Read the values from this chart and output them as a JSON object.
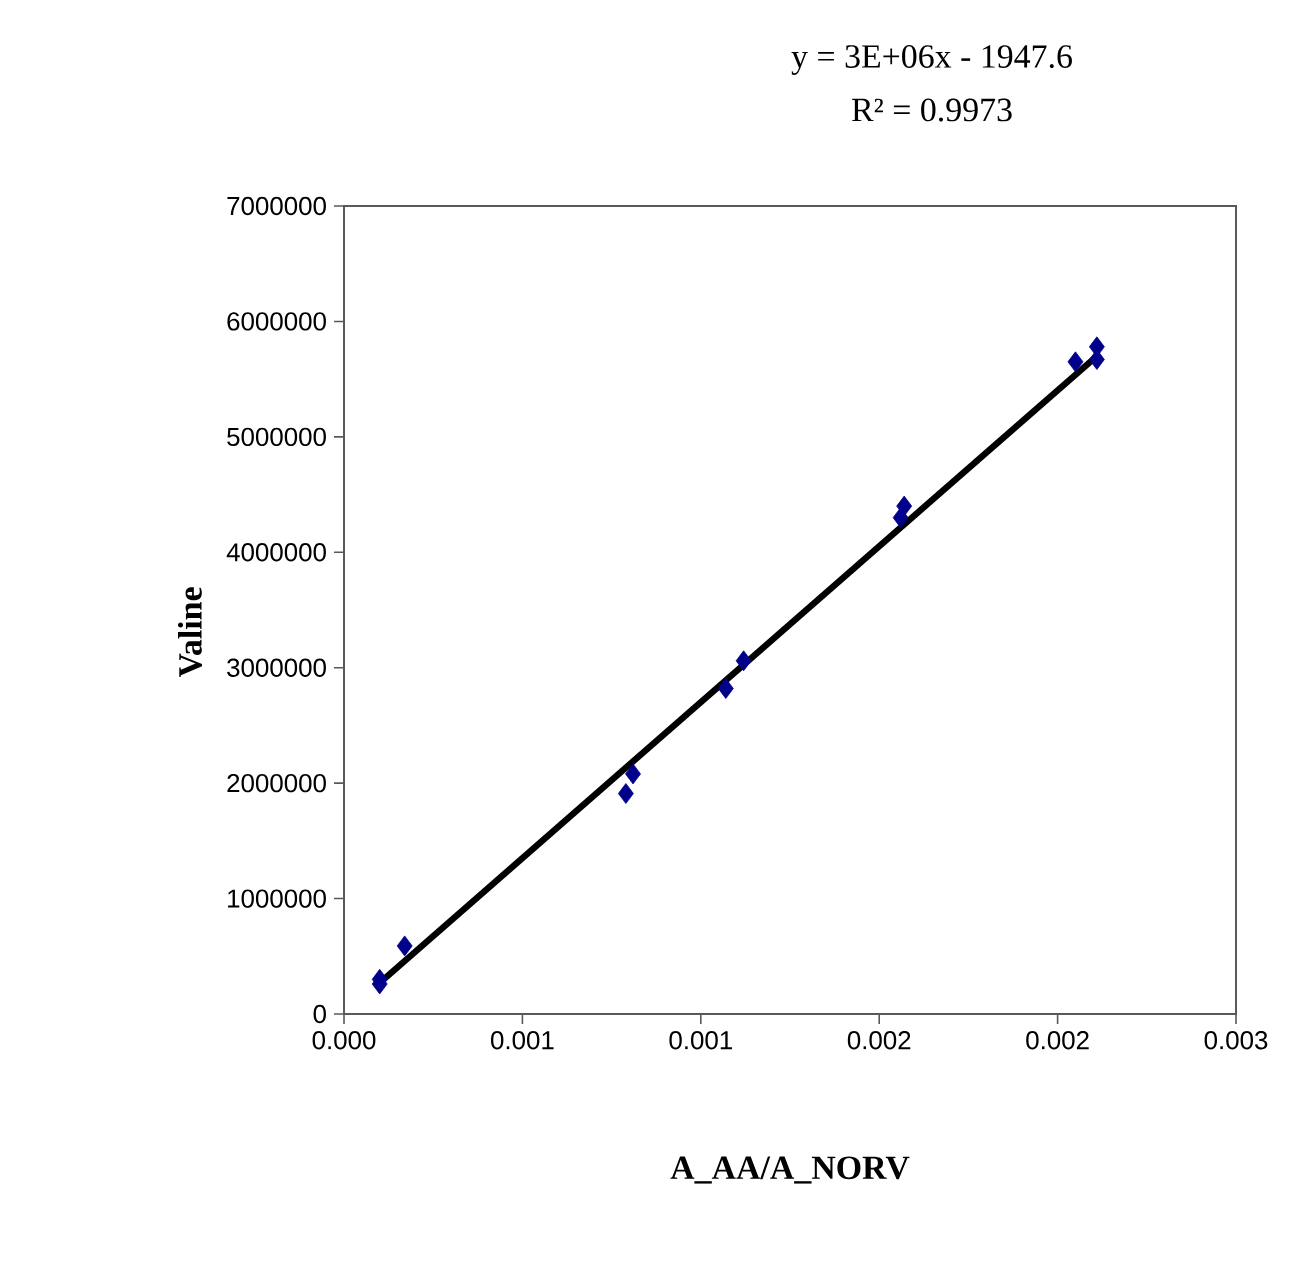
{
  "chart_data": {
    "type": "scatter",
    "xlabel": "A_AA/A_NORV",
    "ylabel": "Valine",
    "annotations": [
      "y = 3E+06x - 1947.6",
      "R² = 0.9973"
    ],
    "xlim": [
      0,
      0.0025
    ],
    "ylim": [
      0,
      7000000
    ],
    "xticks": [
      {
        "value": 0,
        "label": "0.000"
      },
      {
        "value": 0.0005,
        "label": "0.001"
      },
      {
        "value": 0.001,
        "label": "0.001"
      },
      {
        "value": 0.0015,
        "label": "0.002"
      },
      {
        "value": 0.002,
        "label": "0.002"
      },
      {
        "value": 0.0025,
        "label": "0.003"
      }
    ],
    "yticks": [
      0,
      1000000,
      2000000,
      3000000,
      4000000,
      5000000,
      6000000,
      7000000
    ],
    "grid": false,
    "series": [
      {
        "marker": "diamond",
        "color": "#00008b",
        "x": [
          0.0001,
          0.0001,
          0.00017,
          0.00079,
          0.00081,
          0.00107,
          0.00112,
          0.00156,
          0.00157,
          0.00205,
          0.00211,
          0.00211
        ],
        "values": [
          260000,
          300000,
          590000,
          1910000,
          2080000,
          2820000,
          3060000,
          4300000,
          4400000,
          5650000,
          5780000,
          5670000
        ]
      },
      {
        "type": "line",
        "line_style": "solid",
        "color": "#000000",
        "x": [
          0.0001,
          0.00211
        ],
        "values": [
          270000,
          5700000
        ]
      }
    ]
  }
}
